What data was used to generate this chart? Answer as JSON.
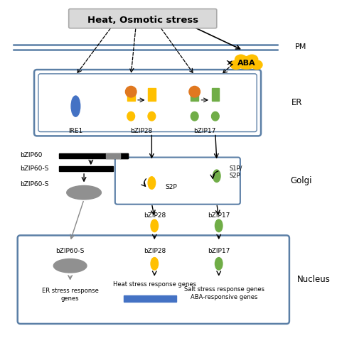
{
  "title": "Heat, Osmotic stress",
  "pm_label": "PM",
  "er_label": "ER",
  "golgi_label": "Golgi",
  "nucleus_label": "Nucleus",
  "aba_label": "ABA",
  "ire1_label": "IRE1",
  "bzip28_label": "bZIP28",
  "bzip17_label": "bZIP17",
  "bzip60_label": "bZIP60",
  "bzip60s_label": "bZIP60-S",
  "s2p_label": "S2P",
  "s1p_s2p_label": "S1P/\nS2P",
  "heat_stress_genes": "Heat stress response genes",
  "er_stress_genes": "ER stress response\ngenes",
  "salt_stress_genes": "Salt stress response genes\nABA-responsive genes",
  "bg_color": "#ffffff",
  "pm_color": "#5b7fa6",
  "er_box_color": "#5b7fa6",
  "golgi_box_color": "#5b7fa6",
  "nucleus_box_color": "#5b7fa6",
  "ire1_color": "#4472c4",
  "bzip28_color": "#ffc000",
  "bzip17_color": "#70ad47",
  "aba_color": "#ffc000",
  "gray_ellipse_color": "#909090",
  "blue_rect_color": "#4472c4",
  "orange_circle_color": "#e07820"
}
